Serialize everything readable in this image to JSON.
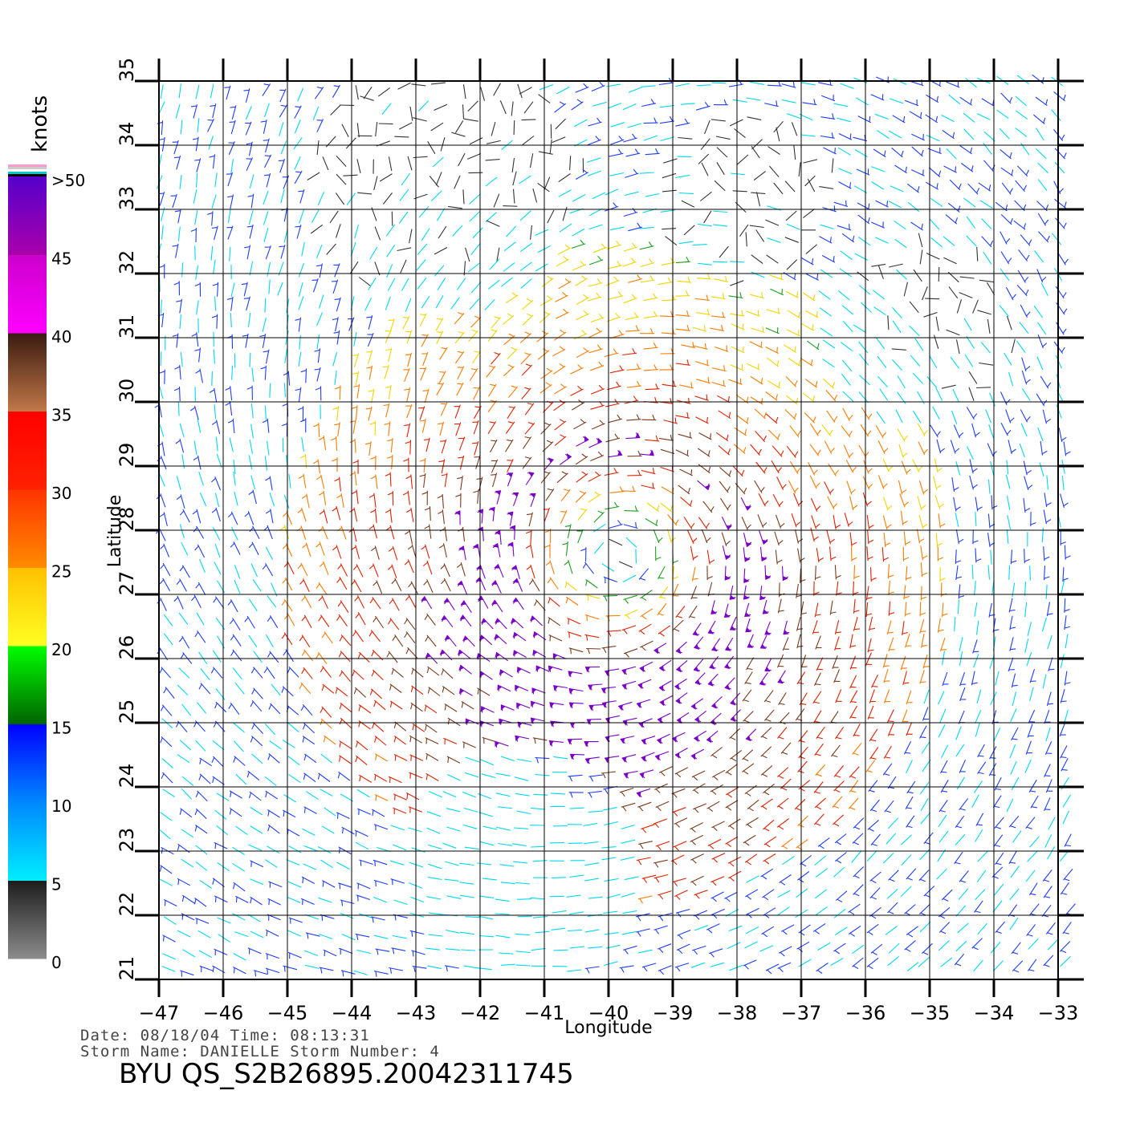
{
  "map": {
    "lon_ticks": [
      -47,
      -46,
      -45,
      -44,
      -43,
      -42,
      -41,
      -40,
      -39,
      -38,
      -37,
      -36,
      -35,
      -34,
      -33
    ],
    "lat_ticks": [
      21,
      22,
      23,
      24,
      25,
      26,
      27,
      28,
      29,
      30,
      31,
      32,
      33,
      34,
      35
    ],
    "lon_range": [
      -47,
      -33
    ],
    "lat_range": [
      21,
      35
    ],
    "x_label": "Longitude",
    "y_label": "Latitude",
    "grid": true,
    "storm_center": {
      "lon": -39.9,
      "lat": 27.4
    },
    "max_wind_knots": 45
  },
  "colorbar": {
    "title": "knots",
    "labels": [
      ">50",
      "45",
      "40",
      "35",
      "30",
      "25",
      "20",
      "15",
      "10",
      "5",
      "0"
    ],
    "bands": [
      {
        "from": 0,
        "to": 5,
        "colors": [
          "#8c8c8c",
          "#1c1c1c"
        ]
      },
      {
        "from": 5,
        "to": 10,
        "colors": [
          "#00eeff",
          "#0088ff"
        ]
      },
      {
        "from": 10,
        "to": 15,
        "colors": [
          "#0088ff",
          "#0000ff"
        ]
      },
      {
        "from": 15,
        "to": 20,
        "colors": [
          "#006400",
          "#00ff00"
        ]
      },
      {
        "from": 20,
        "to": 25,
        "colors": [
          "#ffff22",
          "#ffc000"
        ]
      },
      {
        "from": 25,
        "to": 30,
        "colors": [
          "#ff8c00",
          "#ff3300"
        ]
      },
      {
        "from": 30,
        "to": 35,
        "colors": [
          "#ff2200",
          "#ff0000"
        ]
      },
      {
        "from": 35,
        "to": 40,
        "colors": [
          "#c07848",
          "#3a1a10"
        ]
      },
      {
        "from": 40,
        "to": 45,
        "colors": [
          "#ff00ff",
          "#cc00cc"
        ]
      },
      {
        "from": 45,
        "to": 50,
        "colors": [
          "#aa00aa",
          "#5500cc"
        ]
      }
    ],
    "overflow_stripes": [
      "#000000",
      "#00cccc",
      "#ffffff",
      "#cccccc",
      "#ff99cc"
    ]
  },
  "footer": {
    "date_line": "Date: 08/18/04   Time: 08:13:31",
    "storm_line": "Storm Name: DANIELLE   Storm Number: 4",
    "file_id": "BYU  QS_S2B26895.20042311745"
  }
}
